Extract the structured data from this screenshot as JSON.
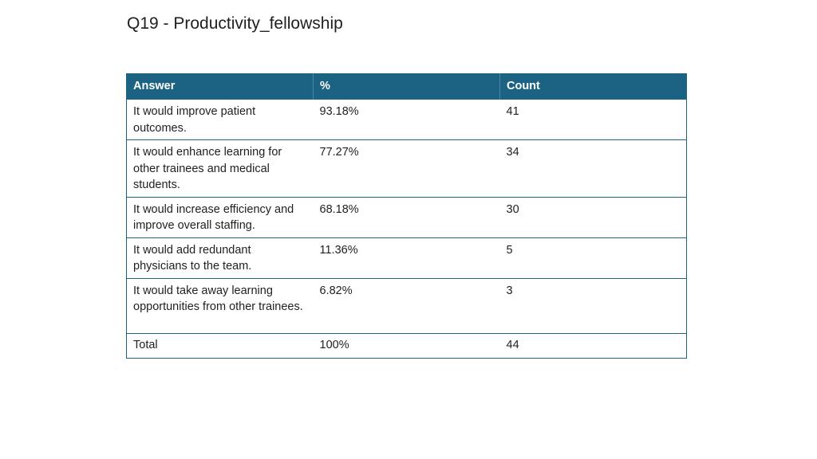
{
  "title": "Q19 - Productivity_fellowship",
  "table": {
    "headers": [
      "Answer",
      "%",
      "Count"
    ],
    "rows": [
      {
        "answer": "It would improve patient outcomes.",
        "percent": "93.18%",
        "count": "41"
      },
      {
        "answer": "It would enhance learning for other trainees and medical students.",
        "percent": "77.27%",
        "count": "34"
      },
      {
        "answer": "It would increase efficiency and improve overall staffing.",
        "percent": "68.18%",
        "count": "30"
      },
      {
        "answer": "It would add redundant physicians to the team.",
        "percent": "11.36%",
        "count": "5"
      },
      {
        "answer": "It would take away learning opportunities from other trainees.",
        "percent": "6.82%",
        "count": "3"
      }
    ],
    "total": {
      "answer": "Total",
      "percent": "100%",
      "count": "44"
    }
  },
  "colors": {
    "header_background": "#1b6283",
    "header_text": "#ffffff",
    "border": "#1b6283"
  }
}
